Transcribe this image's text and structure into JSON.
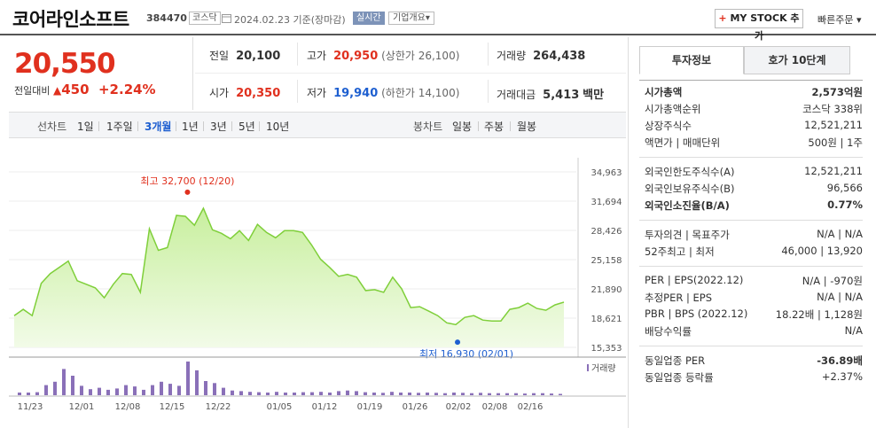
{
  "header": {
    "title": "코어라인소프트",
    "code": "384470",
    "market": "코스닥",
    "date": "2024.02.23",
    "basis": "기준(장마감)",
    "realtime": "실시간",
    "corp_overview": "기업개요",
    "corp_overview_arrow": "▾",
    "my_stock": "MY STOCK 추가",
    "quick_order": "빠른주문"
  },
  "price": {
    "current": "20,550",
    "change_label": "전일대비",
    "change_icon": "▲",
    "change_value": "450",
    "change_pct": "+2.24%"
  },
  "stats": {
    "prev_label": "전일",
    "prev_val": "20,100",
    "high_label": "고가",
    "high_val": "20,950",
    "upper_limit": "(상한가 26,100)",
    "volume_label": "거래량",
    "volume_val": "264,438",
    "open_label": "시가",
    "open_val": "20,350",
    "low_label": "저가",
    "low_val": "19,940",
    "lower_limit": "(하한가 14,100)",
    "amount_label": "거래대금",
    "amount_val": "5,413",
    "amount_unit": "백만"
  },
  "range_tabs": {
    "line_label": "선차트",
    "ranges": [
      "1일",
      "1주일",
      "3개월",
      "1년",
      "3년",
      "5년",
      "10년"
    ],
    "selected": "3개월",
    "candle_label": "봉차트",
    "candles": [
      "일봉",
      "주봉",
      "월봉"
    ]
  },
  "chart_data": {
    "type": "line",
    "y_ticks": [
      "34,963",
      "31,694",
      "28,426",
      "25,158",
      "21,890",
      "18,621",
      "15,353"
    ],
    "ylim": [
      15353,
      34963
    ],
    "x_ticks": [
      "11/23",
      "12/01",
      "12/08",
      "12/15",
      "12/22",
      "01/05",
      "01/12",
      "01/19",
      "01/26",
      "02/02",
      "02/08",
      "02/16"
    ],
    "high_annotation": "최고 32,700 (12/20)",
    "low_annotation": "최저 16,930 (02/01)",
    "volume_label": "거래량",
    "prices": [
      18900,
      19600,
      18900,
      22500,
      23600,
      24300,
      25000,
      22800,
      22400,
      22000,
      20900,
      22400,
      23600,
      23500,
      21500,
      28600,
      26200,
      26500,
      30100,
      30000,
      29000,
      30900,
      28500,
      28100,
      27500,
      28400,
      27300,
      29100,
      28200,
      27600,
      28400,
      28400,
      28200,
      26800,
      25200,
      24300,
      23300,
      23500,
      23200,
      21700,
      21800,
      21500,
      23200,
      21900,
      19800,
      19900,
      19400,
      18900,
      18100,
      17900,
      18700,
      18900,
      18400,
      18300,
      18300,
      19600,
      19800,
      20300,
      19700,
      19500,
      20100,
      20400
    ],
    "volumes": [
      8,
      8,
      9,
      30,
      40,
      78,
      58,
      28,
      18,
      22,
      16,
      20,
      30,
      26,
      16,
      30,
      40,
      34,
      28,
      100,
      74,
      42,
      36,
      22,
      14,
      12,
      10,
      9,
      8,
      10,
      8,
      8,
      9,
      9,
      10,
      8,
      12,
      14,
      12,
      9,
      8,
      7,
      10,
      8,
      8,
      7,
      8,
      7,
      6,
      8,
      7,
      6,
      7,
      6,
      6,
      6,
      6,
      5,
      6,
      6,
      5,
      4
    ]
  },
  "right": {
    "tab_invest": "투자정보",
    "tab_hoga": "호가 10단계",
    "rows1": [
      {
        "k": "시가총액",
        "v": "2,573억원"
      },
      {
        "k": "시가총액순위",
        "v": "코스닥 338위"
      },
      {
        "k": "상장주식수",
        "v": "12,521,211"
      },
      {
        "k": "액면가 | 매매단위",
        "v": "500원 | 1주"
      }
    ],
    "rows2": [
      {
        "k": "외국인한도주식수(A)",
        "v": "12,521,211"
      },
      {
        "k": "외국인보유주식수(B)",
        "v": "96,566"
      },
      {
        "k": "외국인소진율(B/A)",
        "v": "0.77%"
      }
    ],
    "rows3": [
      {
        "k": "투자의견 | 목표주가",
        "v": "N/A | N/A"
      },
      {
        "k": "52주최고 | 최저",
        "v": "46,000 | 13,920"
      }
    ],
    "rows4": [
      {
        "k": "PER | EPS(2022.12)",
        "v": "N/A | -970원"
      },
      {
        "k": "추정PER | EPS",
        "v": "N/A | N/A"
      },
      {
        "k": "PBR | BPS (2022.12)",
        "v": "18.22배 | 1,128원"
      },
      {
        "k": "배당수익률",
        "v": "N/A"
      }
    ],
    "rows5": [
      {
        "k": "동일업종 PER",
        "v": "-36.89배"
      },
      {
        "k": "동일업종 등락률",
        "v": "+2.37%"
      }
    ]
  }
}
